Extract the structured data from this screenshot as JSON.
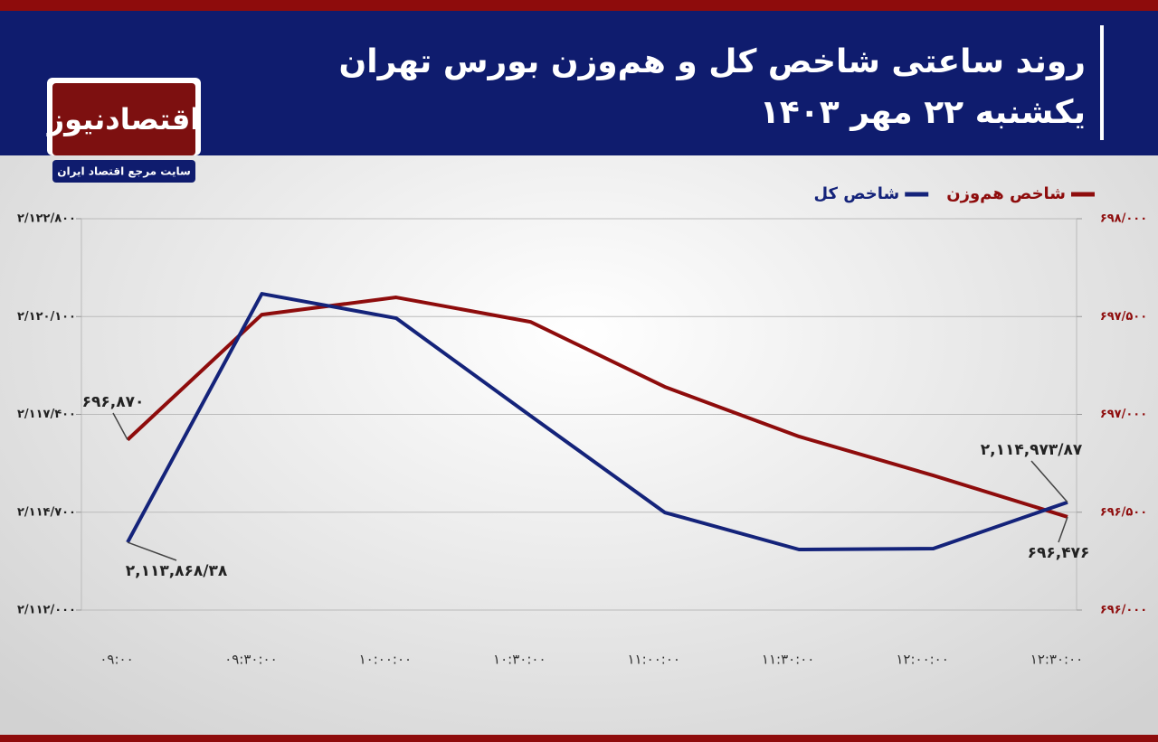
{
  "header": {
    "title": "روند ساعتی شاخص کل و هم‌وزن بورس تهران",
    "subtitle": "یکشنبه ۲۲ مهر ۱۴۰۳",
    "logo": "اقتصادنیوز",
    "logo_tagline": "سایت مرجع اقتصاد ایران"
  },
  "chart_data": {
    "type": "line",
    "categories": [
      "۰۹:۰۰",
      "۰۹:۳۰:۰۰",
      "۱۰:۰۰:۰۰",
      "۱۰:۳۰:۰۰",
      "۱۱:۰۰:۰۰",
      "۱۱:۳۰:۰۰",
      "۱۲:۰۰:۰۰",
      "۱۲:۳۰:۰۰"
    ],
    "series": [
      {
        "name": "شاخص هم‌وزن",
        "color": "#8e0c0c",
        "axis": "y2",
        "values": [
          696870,
          697510,
          697598,
          697473,
          697141,
          696887,
          696688,
          696476
        ],
        "value_labels": [
          "۶۹۶,۸۷۰",
          null,
          null,
          null,
          null,
          null,
          null,
          "۶۹۶,۴۷۶"
        ]
      },
      {
        "name": "شاخص کل",
        "color": "#14237a",
        "values": [
          2113868.38,
          2120728,
          2120055,
          2117362,
          2114693,
          2113671,
          2113696,
          2114973.87
        ],
        "value_labels": [
          "۲,۱۱۳,۸۶۸/۳۸",
          null,
          null,
          null,
          null,
          null,
          null,
          "۲,۱۱۴,۹۷۳/۸۷"
        ]
      }
    ],
    "ylim": [
      2112000,
      2122800
    ],
    "yticks": [
      {
        "value": 2112000,
        "label": "۲/۱۱۲/۰۰۰"
      },
      {
        "value": 2114700,
        "label": "۲/۱۱۴/۷۰۰"
      },
      {
        "value": 2117400,
        "label": "۲/۱۱۷/۴۰۰"
      },
      {
        "value": 2120100,
        "label": "۲/۱۲۰/۱۰۰"
      },
      {
        "value": 2122800,
        "label": "۲/۱۲۲/۸۰۰"
      }
    ],
    "y2lim": [
      696000,
      698000
    ],
    "y2ticks": [
      {
        "value": 696000,
        "label": "۶۹۶/۰۰۰"
      },
      {
        "value": 696500,
        "label": "۶۹۶/۵۰۰"
      },
      {
        "value": 697000,
        "label": "۶۹۷/۰۰۰"
      },
      {
        "value": 697500,
        "label": "۶۹۷/۵۰۰"
      },
      {
        "value": 698000,
        "label": "۶۹۸/۰۰۰"
      }
    ],
    "grid": true,
    "legend": "top-right"
  }
}
